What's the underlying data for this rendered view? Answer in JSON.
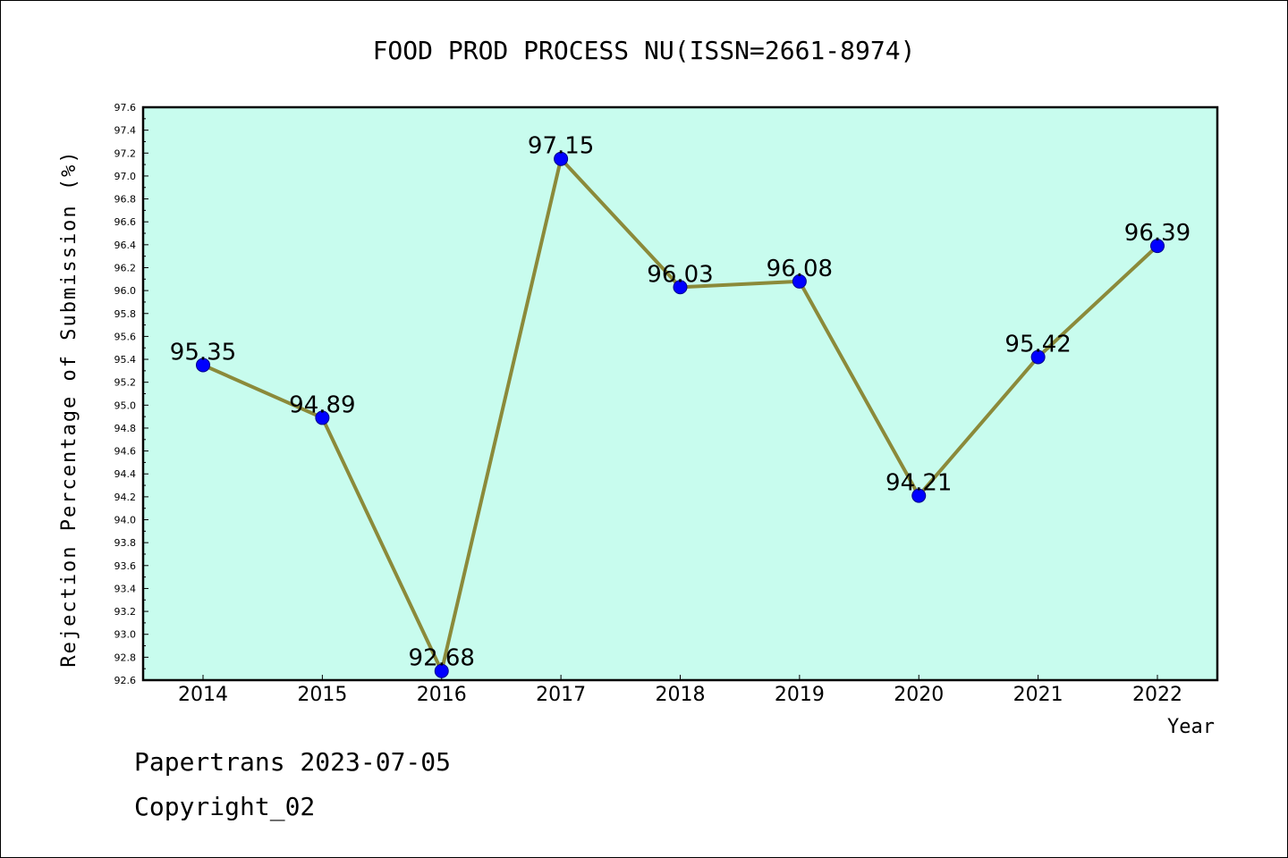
{
  "chart_data": {
    "type": "line",
    "title": "FOOD PROD PROCESS NU(ISSN=2661-8974)",
    "xlabel": "Year",
    "ylabel": "Rejection Percentage of Submission (%)",
    "categories": [
      "2014",
      "2015",
      "2016",
      "2017",
      "2018",
      "2019",
      "2020",
      "2021",
      "2022"
    ],
    "values": [
      95.35,
      94.89,
      92.68,
      97.15,
      96.03,
      96.08,
      94.21,
      95.42,
      96.39
    ],
    "data_labels": [
      "95.35",
      "94.89",
      "92.68",
      "97.15",
      "96.03",
      "96.08",
      "94.21",
      "95.42",
      "96.39"
    ],
    "ylim": [
      92.6,
      97.6
    ],
    "ytick_step": 0.2,
    "grid": false,
    "colors": {
      "plot_background": "#c8fcee",
      "line": "#8b8a3a",
      "marker": "#0000ff"
    }
  },
  "footer": {
    "line1": "Papertrans 2023-07-05",
    "line2": "Copyright_02"
  }
}
